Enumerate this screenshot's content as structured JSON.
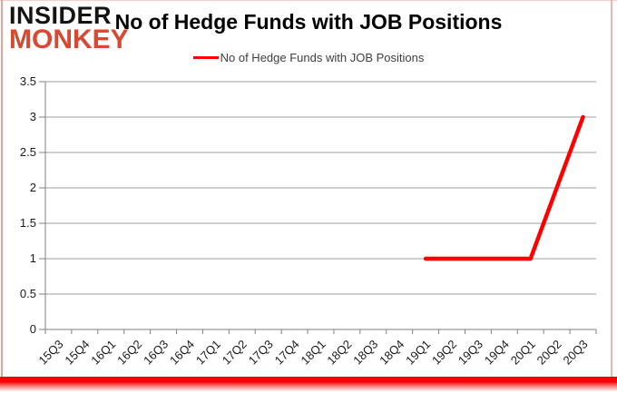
{
  "logo": {
    "line1": "INSIDER",
    "line2": "MONKEY"
  },
  "header": {
    "title": "No of Hedge Funds with JOB Positions"
  },
  "legend": {
    "label": "No of Hedge Funds with JOB Positions"
  },
  "colors": {
    "series": "#fe0000",
    "grid": "#9c9c9c",
    "axis": "#808080",
    "tick_label": "#1a1a1a",
    "logo_accent": "#d64933",
    "frame_bottom": "#f40606"
  },
  "chart_data": {
    "type": "line",
    "title": "No of Hedge Funds with JOB Positions",
    "categories": [
      "15Q3",
      "15Q4",
      "16Q1",
      "16Q2",
      "16Q3",
      "16Q4",
      "17Q1",
      "17Q2",
      "17Q3",
      "17Q4",
      "18Q1",
      "18Q2",
      "18Q3",
      "18Q4",
      "19Q1",
      "19Q2",
      "19Q3",
      "19Q4",
      "20Q1",
      "20Q2",
      "20Q3"
    ],
    "series": [
      {
        "name": "No of Hedge Funds with JOB Positions",
        "color": "#fe0000",
        "values": [
          null,
          null,
          null,
          null,
          null,
          null,
          null,
          null,
          null,
          null,
          null,
          null,
          null,
          null,
          1,
          1,
          1,
          1,
          1,
          2,
          3
        ]
      }
    ],
    "ylim": [
      0,
      3.5
    ],
    "yticks": [
      0,
      0.5,
      1,
      1.5,
      2,
      2.5,
      3,
      3.5
    ],
    "grid": true,
    "legend_position": "top-center",
    "x_tick_label_rotation": -45
  }
}
